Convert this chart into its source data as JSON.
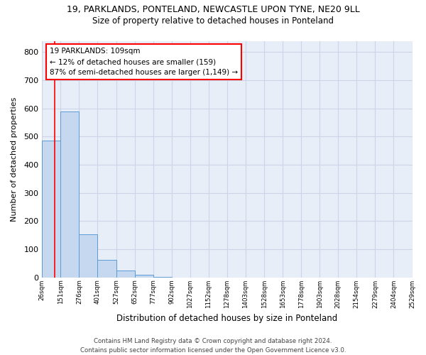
{
  "title_line1": "19, PARKLANDS, PONTELAND, NEWCASTLE UPON TYNE, NE20 9LL",
  "title_line2": "Size of property relative to detached houses in Ponteland",
  "xlabel": "Distribution of detached houses by size in Ponteland",
  "ylabel": "Number of detached properties",
  "bar_values": [
    485,
    590,
    152,
    63,
    25,
    8,
    2,
    0,
    0,
    0,
    0,
    0,
    0,
    0,
    0,
    0,
    0,
    0,
    0,
    0
  ],
  "tick_labels": [
    "26sqm",
    "151sqm",
    "276sqm",
    "401sqm",
    "527sqm",
    "652sqm",
    "777sqm",
    "902sqm",
    "1027sqm",
    "1152sqm",
    "1278sqm",
    "1403sqm",
    "1528sqm",
    "1653sqm",
    "1778sqm",
    "1903sqm",
    "2028sqm",
    "2154sqm",
    "2279sqm",
    "2404sqm",
    "2529sqm"
  ],
  "ylim": [
    0,
    840
  ],
  "yticks": [
    0,
    100,
    200,
    300,
    400,
    500,
    600,
    700,
    800
  ],
  "bar_color": "#c5d8f0",
  "bar_edge_color": "#5b9bd5",
  "annotation_text": "19 PARKLANDS: 109sqm\n← 12% of detached houses are smaller (159)\n87% of semi-detached houses are larger (1,149) →",
  "annotation_box_color": "white",
  "annotation_box_edge": "red",
  "vline_color": "red",
  "grid_color": "#ccd5e8",
  "footer_line1": "Contains HM Land Registry data © Crown copyright and database right 2024.",
  "footer_line2": "Contains public sector information licensed under the Open Government Licence v3.0.",
  "background_color": "#e8eef8",
  "n_bars": 20,
  "bar_width": 1.0,
  "vline_position": 0.664
}
